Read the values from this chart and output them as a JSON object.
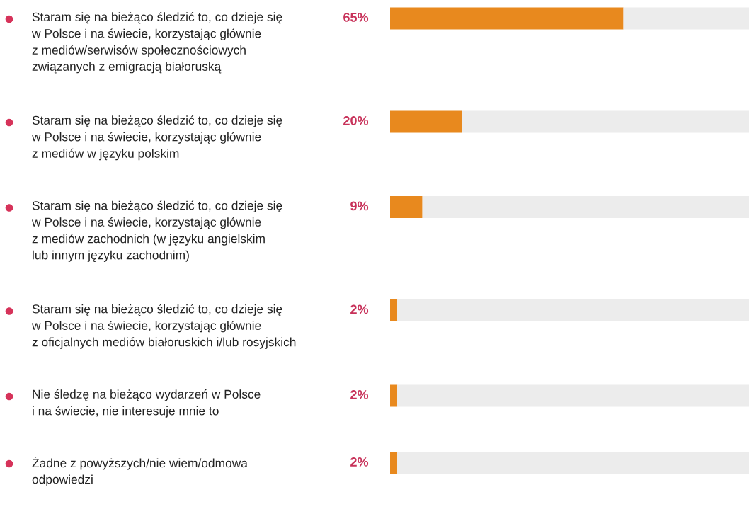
{
  "chart_data": {
    "type": "bar",
    "orientation": "horizontal",
    "stacked": true,
    "categories": [
      "Staram się na bieżąco śledzić to, co dzieje się\nw Polsce i na świecie, korzystając głównie\nz mediów/serwisów społecznościowych\nzwiązanych z emigracją białoruską",
      "Staram się na bieżąco śledzić to, co dzieje się\nw Polsce i na świecie, korzystając głównie\nz mediów w języku polskim",
      "Staram się na bieżąco śledzić to, co dzieje się\nw Polsce i na świecie, korzystając głównie\nz mediów zachodnich (w języku angielskim\nlub innym języku zachodnim)",
      "Staram się na bieżąco śledzić to, co dzieje się\nw Polsce i na świecie, korzystając głównie\nz oficjalnych mediów białoruskich i/lub rosyjskich",
      "Nie śledzę na bieżąco wydarzeń w Polsce\ni na świecie, nie interesuje mnie to",
      "Żadne z powyższych/nie wiem/odmowa\nodpowiedzi"
    ],
    "series": [
      {
        "color": "#e8891e",
        "values": [
          65,
          20,
          9,
          2,
          2,
          2
        ],
        "value_labels": [
          "65%",
          "20%",
          "9%",
          "2%",
          "2%",
          "2%"
        ]
      },
      {
        "color": "#ececec",
        "values": [
          35,
          80,
          91,
          98,
          98,
          98
        ]
      }
    ],
    "xlim": [
      0,
      100
    ]
  }
}
